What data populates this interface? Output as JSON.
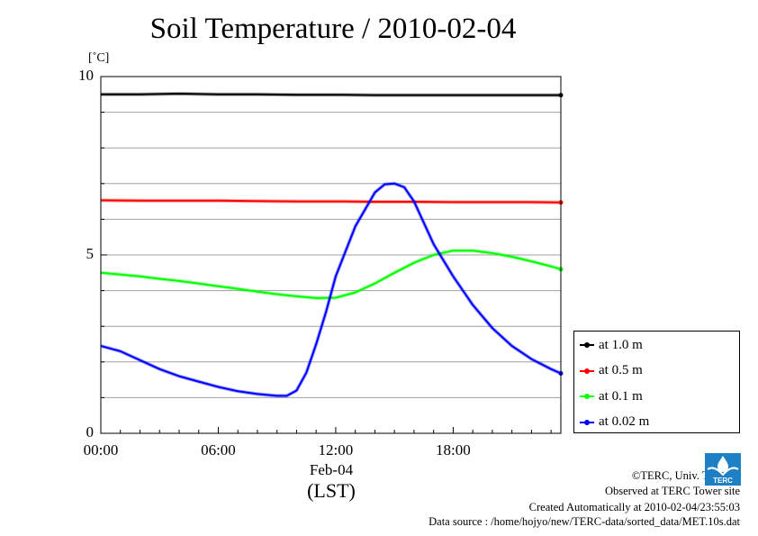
{
  "title": "Soil Temperature / 2010-02-04",
  "unit_label": "[˚C]",
  "date_label": "Feb-04",
  "timezone_label": "(LST)",
  "legend": [
    {
      "label": "at 1.0 m",
      "color": "#000000"
    },
    {
      "label": "at 0.5 m",
      "color": "#ff0000"
    },
    {
      "label": "at 0.1 m",
      "color": "#00ff00"
    },
    {
      "label": "at 0.02 m",
      "color": "#0000ff"
    }
  ],
  "credits": {
    "copyright": "©TERC, Univ. Tsukuba",
    "observed": "Observed at TERC Tower site",
    "created": "Created Automatically at 2010-02-04/23:55:03",
    "source": "Data source : /home/hojyo/new/TERC-data/sorted_data/MET.10s.dat"
  },
  "logo_text": "TERC",
  "chart_data": {
    "type": "line",
    "title": "Soil Temperature / 2010-02-04",
    "xlabel": "(LST)",
    "ylabel": "[˚C]",
    "xlim": [
      0,
      23.5
    ],
    "ylim": [
      0,
      10
    ],
    "y_ticks": [
      0,
      5,
      10
    ],
    "y_tick_labels": [
      "0",
      "5",
      "10"
    ],
    "x_ticks": [
      0,
      6,
      12,
      18
    ],
    "x_tick_labels": [
      "00:00",
      "06:00",
      "12:00",
      "18:00"
    ],
    "grid": true,
    "grid_y_step": 1,
    "legend_position": "bottom-right-outside",
    "series": [
      {
        "name": "at 1.0 m",
        "color": "#000000",
        "x": [
          0,
          2,
          4,
          6,
          8,
          10,
          12,
          14,
          16,
          18,
          20,
          22,
          23.5
        ],
        "values": [
          9.5,
          9.5,
          9.52,
          9.5,
          9.5,
          9.49,
          9.49,
          9.48,
          9.48,
          9.48,
          9.48,
          9.48,
          9.48
        ]
      },
      {
        "name": "at 0.5 m",
        "color": "#ff0000",
        "x": [
          0,
          2,
          4,
          6,
          8,
          10,
          12,
          14,
          16,
          18,
          20,
          22,
          23.5
        ],
        "values": [
          6.53,
          6.52,
          6.52,
          6.52,
          6.51,
          6.5,
          6.5,
          6.49,
          6.49,
          6.48,
          6.48,
          6.48,
          6.47
        ]
      },
      {
        "name": "at 0.1 m",
        "color": "#00ff00",
        "x": [
          0,
          1,
          2,
          3,
          4,
          5,
          6,
          7,
          8,
          9,
          10,
          11,
          12,
          13,
          14,
          15,
          16,
          17,
          18,
          19,
          20,
          21,
          22,
          23,
          23.5
        ],
        "values": [
          4.5,
          4.45,
          4.4,
          4.33,
          4.27,
          4.2,
          4.12,
          4.05,
          3.97,
          3.9,
          3.84,
          3.79,
          3.8,
          3.95,
          4.2,
          4.5,
          4.78,
          5.0,
          5.12,
          5.12,
          5.05,
          4.95,
          4.82,
          4.68,
          4.6
        ]
      },
      {
        "name": "at 0.02 m",
        "color": "#0000ff",
        "x": [
          0,
          1,
          2,
          3,
          4,
          5,
          6,
          7,
          8,
          9,
          9.5,
          10,
          10.5,
          11,
          11.5,
          12,
          13,
          14,
          14.5,
          15,
          15.5,
          16,
          17,
          18,
          19,
          20,
          21,
          22,
          23,
          23.5
        ],
        "values": [
          2.45,
          2.3,
          2.05,
          1.8,
          1.6,
          1.45,
          1.3,
          1.18,
          1.1,
          1.05,
          1.05,
          1.2,
          1.7,
          2.5,
          3.4,
          4.4,
          5.8,
          6.75,
          6.98,
          7.0,
          6.9,
          6.5,
          5.3,
          4.4,
          3.6,
          2.95,
          2.45,
          2.08,
          1.8,
          1.68
        ]
      }
    ]
  }
}
